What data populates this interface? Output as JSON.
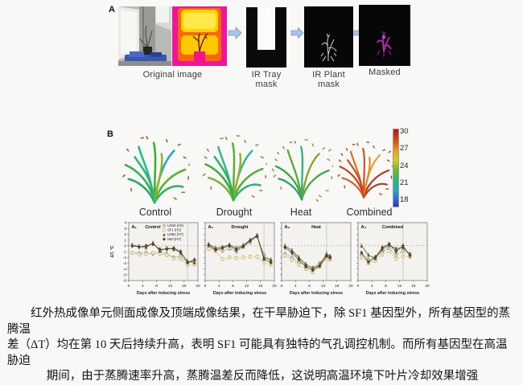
{
  "panel_a": {
    "label": "A",
    "captions": {
      "original": "Original image",
      "tray_1": "IR Tray",
      "tray_2": "mask",
      "plant_1": "IR Plant",
      "plant_2": "mask",
      "masked": "Masked"
    }
  },
  "panel_b": {
    "label": "B",
    "plants": [
      {
        "label": "Control",
        "palette": [
          "#2fae4e",
          "#25b98a",
          "#3fae2f",
          "#2a9fd0",
          "#57b32a",
          "#2fa060",
          "#36b060",
          "#8ab52a",
          "#2db877"
        ],
        "dot_color": "#a85a28",
        "blades": 9,
        "dots": 12
      },
      {
        "label": "Drought",
        "palette": [
          "#3aae3a",
          "#28b890",
          "#56b02a",
          "#2bb8a2",
          "#4aae2f",
          "#7fae28",
          "#30b068",
          "#98b02a",
          "#2faf55"
        ],
        "dot_color": "#a8742a",
        "blades": 9,
        "dots": 14
      },
      {
        "label": "Heat",
        "palette": [
          "#38a838",
          "#55a82c",
          "#2cb080",
          "#84a028",
          "#3fa84a",
          "#2ca06a"
        ],
        "dot_color": "#b07a30",
        "blades": 6,
        "dots": 18
      },
      {
        "label": "Combined",
        "palette": [
          "#c83a18",
          "#e06a1a",
          "#d04a20",
          "#e0a020",
          "#c22e14",
          "#d85a20",
          "#b03018",
          "#e08a20",
          "#cc4418"
        ],
        "dot_color": "#c02810",
        "blades": 9,
        "dots": 16
      }
    ],
    "colorbar": {
      "ticks": [
        "30",
        "27",
        "24",
        "21",
        "18"
      ]
    }
  },
  "chart_data": {
    "type": "line",
    "ylabel": "ΔT, °C",
    "xlabel": "Days after inducing stress",
    "ylim": [
      -6,
      4
    ],
    "xlim": [
      0,
      20
    ],
    "yticks": [
      4,
      3,
      2,
      1,
      0,
      -1,
      -2,
      -3,
      -4,
      -5,
      -6
    ],
    "xticks": [
      0,
      4,
      8,
      12,
      16,
      20
    ],
    "grid": "zero-line-dashed",
    "legend_position": "top-right of first panel",
    "series_meta": [
      {
        "name": "LM19 (HS)",
        "color": "#8b8b7d",
        "marker": "diamond-open",
        "line": "dashed"
      },
      {
        "name": "SF1 (HS)",
        "color": "#c9ba6a",
        "marker": "square-open",
        "line": "dashed"
      },
      {
        "name": "LM62 (HT)",
        "color": "#4c5f28",
        "marker": "triangle",
        "line": "solid"
      },
      {
        "name": "N63 (HT)",
        "color": "#5c3a28",
        "marker": "diamond",
        "line": "solid"
      }
    ],
    "panels": [
      {
        "id": "A₁",
        "title": "Control",
        "vline": 17,
        "x": [
          1,
          3,
          5,
          7,
          9,
          11,
          13,
          15,
          17,
          19
        ],
        "series": [
          {
            "name": "LM19 (HS)",
            "values": [
              -1.2,
              -1.3,
              -1.2,
              -1.4,
              -1.0,
              -1.4,
              -2.0,
              -1.8,
              -3.0,
              -2.6
            ]
          },
          {
            "name": "SF1 (HS)",
            "values": [
              -1.2,
              -1.5,
              -1.4,
              -1.2,
              -1.4,
              -1.6,
              -2.2,
              -2.3,
              -3.3,
              -3.2
            ]
          },
          {
            "name": "LM62 (HT)",
            "values": [
              0.1,
              -0.1,
              -0.3,
              0.5,
              -0.9,
              -0.4,
              -0.6,
              -1.2,
              -2.7,
              -2.9
            ]
          },
          {
            "name": "N63 (HT)",
            "values": [
              0.0,
              -0.2,
              0.0,
              0.3,
              -0.6,
              -0.6,
              -0.4,
              -1.0,
              -2.9,
              -2.4
            ]
          }
        ]
      },
      {
        "id": "A₂",
        "title": "Drought",
        "vline": 17,
        "x": [
          1,
          3,
          5,
          7,
          9,
          11,
          13,
          15,
          17,
          19
        ],
        "series": [
          {
            "name": "LM19 (HS)",
            "values": [
              -0.3,
              -0.6,
              -0.9,
              -0.5,
              -1.0,
              -0.2,
              0.6,
              1.6,
              -1.5,
              -2.6
            ]
          },
          {
            "name": "SF1 (HS)",
            "values": [
              -0.5,
              -0.9,
              -2.3,
              -2.0,
              -2.1,
              -2.0,
              -1.9,
              -1.9,
              -2.9,
              -3.3
            ]
          },
          {
            "name": "LM62 (HT)",
            "values": [
              0.3,
              -0.4,
              -0.2,
              0.2,
              -0.4,
              0.1,
              1.0,
              1.8,
              -2.0,
              -2.4
            ]
          },
          {
            "name": "N63 (HT)",
            "values": [
              0.1,
              -0.7,
              -0.4,
              0.0,
              -0.7,
              -0.1,
              0.9,
              1.7,
              -2.3,
              -2.9
            ]
          }
        ]
      },
      {
        "id": "A₃",
        "title": "Heat",
        "vline": 13,
        "x": [
          1,
          3,
          5,
          7,
          9,
          11,
          13,
          14
        ],
        "series": [
          {
            "name": "LM19 (HS)",
            "values": [
              -1.4,
              -2.0,
              -2.9,
              -3.3,
              -3.8,
              -3.0,
              -1.6,
              -1.9
            ]
          },
          {
            "name": "SF1 (HS)",
            "values": [
              -1.7,
              -2.4,
              -3.3,
              -4.0,
              -4.6,
              -3.6,
              -2.2,
              -2.4
            ]
          },
          {
            "name": "LM62 (HT)",
            "values": [
              0.0,
              -0.8,
              -2.0,
              -3.2,
              -3.9,
              -3.3,
              -1.4,
              -1.8
            ]
          },
          {
            "name": "N63 (HT)",
            "values": [
              -0.3,
              -1.2,
              -2.4,
              -3.6,
              -4.2,
              -3.5,
              -1.8,
              -2.1
            ]
          }
        ]
      },
      {
        "id": "A₄",
        "title": "Combined",
        "vline": 13,
        "x": [
          1,
          3,
          5,
          7,
          9,
          11,
          13,
          15
        ],
        "series": [
          {
            "name": "LM19 (HS)",
            "values": [
              -1.6,
              -2.4,
              -1.9,
              -1.0,
              -0.4,
              -1.6,
              -0.9,
              -1.4
            ]
          },
          {
            "name": "SF1 (HS)",
            "values": [
              -2.0,
              -3.0,
              -2.6,
              -1.5,
              -0.9,
              -2.3,
              -1.8,
              -1.9
            ]
          },
          {
            "name": "LM62 (HT)",
            "values": [
              0.0,
              -1.6,
              -2.2,
              -0.6,
              0.1,
              -0.5,
              -0.3,
              -1.5
            ]
          },
          {
            "name": "N63 (HT)",
            "values": [
              -1.2,
              -2.8,
              -2.0,
              -0.3,
              0.3,
              -1.0,
              0.0,
              -1.7
            ]
          }
        ]
      }
    ]
  },
  "caption": {
    "line1": "红外热成像单元侧面成像及顶端成像结果，在干旱胁迫下，除 SF1 基因型外，所有基因型的蒸腾温",
    "line2": "差（ΔT）均在第 10 天后持续升高，表明 SF1 可能具有独特的气孔调控机制。而所有基因型在高温胁迫",
    "line3": "期间，由于蒸腾速率升高，蒸腾温差反而降低，这说明高温环境下叶片冷却效果增强"
  }
}
